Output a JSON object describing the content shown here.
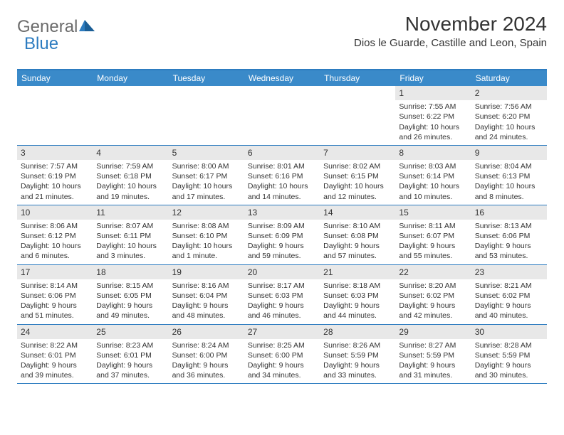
{
  "logo": {
    "text1": "General",
    "text2": "Blue"
  },
  "title": "November 2024",
  "location": "Dios le Guarde, Castille and Leon, Spain",
  "colors": {
    "header_bar": "#3a8ac9",
    "accent": "#2d7cc0",
    "daynum_bg": "#e8e8e8",
    "text": "#333333",
    "logo_gray": "#6b6b6b"
  },
  "weekdays": [
    "Sunday",
    "Monday",
    "Tuesday",
    "Wednesday",
    "Thursday",
    "Friday",
    "Saturday"
  ],
  "weeks": [
    [
      {
        "n": "",
        "sr": "",
        "ss": "",
        "dl1": "",
        "dl2": "",
        "empty": true
      },
      {
        "n": "",
        "sr": "",
        "ss": "",
        "dl1": "",
        "dl2": "",
        "empty": true
      },
      {
        "n": "",
        "sr": "",
        "ss": "",
        "dl1": "",
        "dl2": "",
        "empty": true
      },
      {
        "n": "",
        "sr": "",
        "ss": "",
        "dl1": "",
        "dl2": "",
        "empty": true
      },
      {
        "n": "",
        "sr": "",
        "ss": "",
        "dl1": "",
        "dl2": "",
        "empty": true
      },
      {
        "n": "1",
        "sr": "Sunrise: 7:55 AM",
        "ss": "Sunset: 6:22 PM",
        "dl1": "Daylight: 10 hours",
        "dl2": "and 26 minutes."
      },
      {
        "n": "2",
        "sr": "Sunrise: 7:56 AM",
        "ss": "Sunset: 6:20 PM",
        "dl1": "Daylight: 10 hours",
        "dl2": "and 24 minutes."
      }
    ],
    [
      {
        "n": "3",
        "sr": "Sunrise: 7:57 AM",
        "ss": "Sunset: 6:19 PM",
        "dl1": "Daylight: 10 hours",
        "dl2": "and 21 minutes."
      },
      {
        "n": "4",
        "sr": "Sunrise: 7:59 AM",
        "ss": "Sunset: 6:18 PM",
        "dl1": "Daylight: 10 hours",
        "dl2": "and 19 minutes."
      },
      {
        "n": "5",
        "sr": "Sunrise: 8:00 AM",
        "ss": "Sunset: 6:17 PM",
        "dl1": "Daylight: 10 hours",
        "dl2": "and 17 minutes."
      },
      {
        "n": "6",
        "sr": "Sunrise: 8:01 AM",
        "ss": "Sunset: 6:16 PM",
        "dl1": "Daylight: 10 hours",
        "dl2": "and 14 minutes."
      },
      {
        "n": "7",
        "sr": "Sunrise: 8:02 AM",
        "ss": "Sunset: 6:15 PM",
        "dl1": "Daylight: 10 hours",
        "dl2": "and 12 minutes."
      },
      {
        "n": "8",
        "sr": "Sunrise: 8:03 AM",
        "ss": "Sunset: 6:14 PM",
        "dl1": "Daylight: 10 hours",
        "dl2": "and 10 minutes."
      },
      {
        "n": "9",
        "sr": "Sunrise: 8:04 AM",
        "ss": "Sunset: 6:13 PM",
        "dl1": "Daylight: 10 hours",
        "dl2": "and 8 minutes."
      }
    ],
    [
      {
        "n": "10",
        "sr": "Sunrise: 8:06 AM",
        "ss": "Sunset: 6:12 PM",
        "dl1": "Daylight: 10 hours",
        "dl2": "and 6 minutes."
      },
      {
        "n": "11",
        "sr": "Sunrise: 8:07 AM",
        "ss": "Sunset: 6:11 PM",
        "dl1": "Daylight: 10 hours",
        "dl2": "and 3 minutes."
      },
      {
        "n": "12",
        "sr": "Sunrise: 8:08 AM",
        "ss": "Sunset: 6:10 PM",
        "dl1": "Daylight: 10 hours",
        "dl2": "and 1 minute."
      },
      {
        "n": "13",
        "sr": "Sunrise: 8:09 AM",
        "ss": "Sunset: 6:09 PM",
        "dl1": "Daylight: 9 hours",
        "dl2": "and 59 minutes."
      },
      {
        "n": "14",
        "sr": "Sunrise: 8:10 AM",
        "ss": "Sunset: 6:08 PM",
        "dl1": "Daylight: 9 hours",
        "dl2": "and 57 minutes."
      },
      {
        "n": "15",
        "sr": "Sunrise: 8:11 AM",
        "ss": "Sunset: 6:07 PM",
        "dl1": "Daylight: 9 hours",
        "dl2": "and 55 minutes."
      },
      {
        "n": "16",
        "sr": "Sunrise: 8:13 AM",
        "ss": "Sunset: 6:06 PM",
        "dl1": "Daylight: 9 hours",
        "dl2": "and 53 minutes."
      }
    ],
    [
      {
        "n": "17",
        "sr": "Sunrise: 8:14 AM",
        "ss": "Sunset: 6:06 PM",
        "dl1": "Daylight: 9 hours",
        "dl2": "and 51 minutes."
      },
      {
        "n": "18",
        "sr": "Sunrise: 8:15 AM",
        "ss": "Sunset: 6:05 PM",
        "dl1": "Daylight: 9 hours",
        "dl2": "and 49 minutes."
      },
      {
        "n": "19",
        "sr": "Sunrise: 8:16 AM",
        "ss": "Sunset: 6:04 PM",
        "dl1": "Daylight: 9 hours",
        "dl2": "and 48 minutes."
      },
      {
        "n": "20",
        "sr": "Sunrise: 8:17 AM",
        "ss": "Sunset: 6:03 PM",
        "dl1": "Daylight: 9 hours",
        "dl2": "and 46 minutes."
      },
      {
        "n": "21",
        "sr": "Sunrise: 8:18 AM",
        "ss": "Sunset: 6:03 PM",
        "dl1": "Daylight: 9 hours",
        "dl2": "and 44 minutes."
      },
      {
        "n": "22",
        "sr": "Sunrise: 8:20 AM",
        "ss": "Sunset: 6:02 PM",
        "dl1": "Daylight: 9 hours",
        "dl2": "and 42 minutes."
      },
      {
        "n": "23",
        "sr": "Sunrise: 8:21 AM",
        "ss": "Sunset: 6:02 PM",
        "dl1": "Daylight: 9 hours",
        "dl2": "and 40 minutes."
      }
    ],
    [
      {
        "n": "24",
        "sr": "Sunrise: 8:22 AM",
        "ss": "Sunset: 6:01 PM",
        "dl1": "Daylight: 9 hours",
        "dl2": "and 39 minutes."
      },
      {
        "n": "25",
        "sr": "Sunrise: 8:23 AM",
        "ss": "Sunset: 6:01 PM",
        "dl1": "Daylight: 9 hours",
        "dl2": "and 37 minutes."
      },
      {
        "n": "26",
        "sr": "Sunrise: 8:24 AM",
        "ss": "Sunset: 6:00 PM",
        "dl1": "Daylight: 9 hours",
        "dl2": "and 36 minutes."
      },
      {
        "n": "27",
        "sr": "Sunrise: 8:25 AM",
        "ss": "Sunset: 6:00 PM",
        "dl1": "Daylight: 9 hours",
        "dl2": "and 34 minutes."
      },
      {
        "n": "28",
        "sr": "Sunrise: 8:26 AM",
        "ss": "Sunset: 5:59 PM",
        "dl1": "Daylight: 9 hours",
        "dl2": "and 33 minutes."
      },
      {
        "n": "29",
        "sr": "Sunrise: 8:27 AM",
        "ss": "Sunset: 5:59 PM",
        "dl1": "Daylight: 9 hours",
        "dl2": "and 31 minutes."
      },
      {
        "n": "30",
        "sr": "Sunrise: 8:28 AM",
        "ss": "Sunset: 5:59 PM",
        "dl1": "Daylight: 9 hours",
        "dl2": "and 30 minutes."
      }
    ]
  ]
}
